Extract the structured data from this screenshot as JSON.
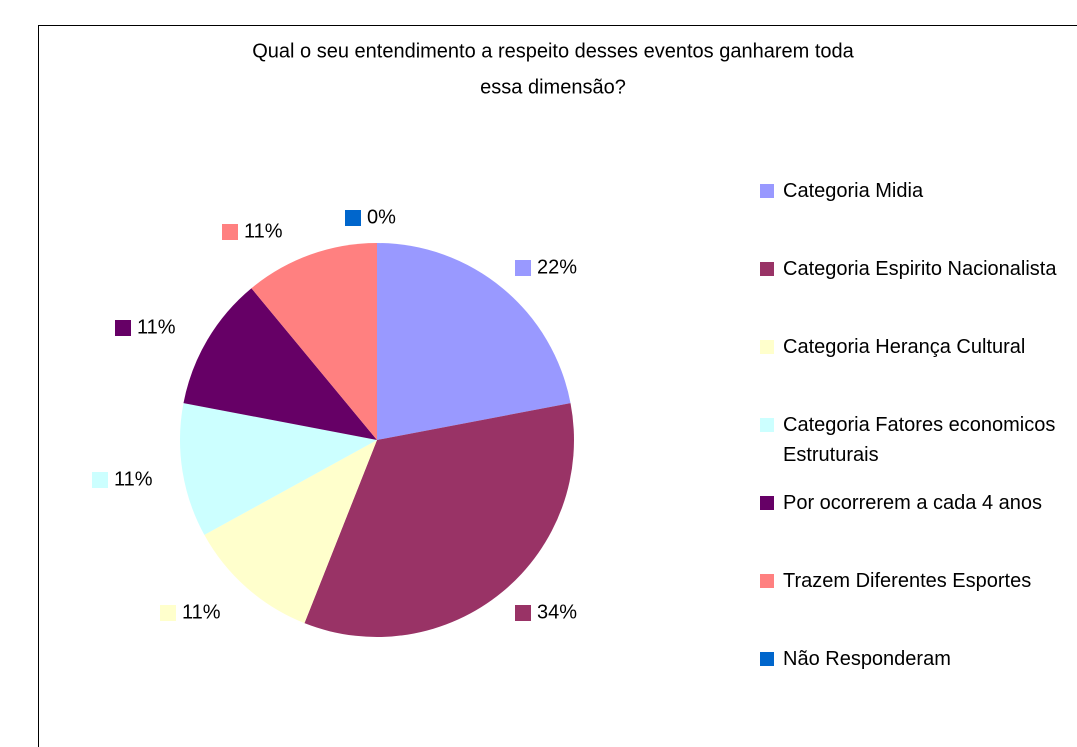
{
  "chart_data": {
    "type": "pie",
    "title": [
      "Qual o seu entendimento a respeito desses  eventos ganharem toda",
      "essa dimensão?"
    ],
    "categories": [
      "Categoria Midia",
      "Categoria Espirito Nacionalista",
      "Categoria Herança Cultural",
      "Categoria Fatores economicos Estruturais",
      "Por ocorrerem a cada 4 anos",
      "Trazem Diferentes Esportes",
      "Não Responderam"
    ],
    "values": [
      22,
      34,
      11,
      11,
      11,
      11,
      0
    ],
    "value_labels": [
      "22%",
      "34%",
      "11%",
      "11%",
      "11%",
      "11%",
      "0%"
    ],
    "colors": [
      "#9999ff",
      "#993366",
      "#ffffcc",
      "#ccffff",
      "#660066",
      "#ff8080",
      "#0066cc"
    ],
    "legend": "right"
  }
}
